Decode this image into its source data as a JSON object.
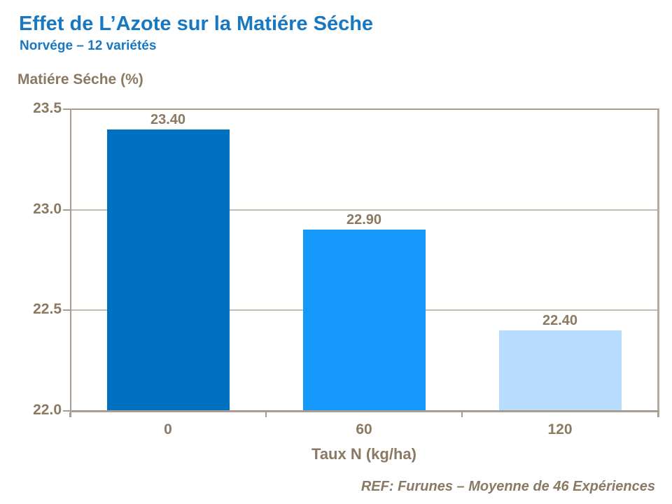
{
  "header": {
    "title": "Effet de L’Azote sur la Matiére Séche",
    "subtitle": "Norvége – 12 variétés"
  },
  "footer": {
    "ref": "REF: Furunes – Moyenne de 46 Expériences"
  },
  "colors": {
    "title_blue": "#1878C2",
    "text_brown": "#8A7963",
    "axis_line": "#A89D90",
    "gridline": "#C3BCB1",
    "plot_right_border": "#B3A99D",
    "bar_colors": [
      "#0070C0",
      "#1499FA",
      "#B8DCFD"
    ]
  },
  "chart_data": {
    "type": "bar",
    "title": "",
    "ylabel": "Matiére Séche (%)",
    "xlabel": "Taux N (kg/ha)",
    "categories": [
      "0",
      "60",
      "120"
    ],
    "values": [
      23.4,
      22.9,
      22.4
    ],
    "data_labels": [
      "23.40",
      "22.90",
      "22.40"
    ],
    "ylim": [
      22.0,
      23.5
    ],
    "yticks": [
      23.5,
      23.0,
      22.5,
      22.0
    ],
    "ytick_labels": [
      "23.5",
      "23.0",
      "22.5",
      "22.0"
    ],
    "grid": true,
    "legend": "none"
  }
}
